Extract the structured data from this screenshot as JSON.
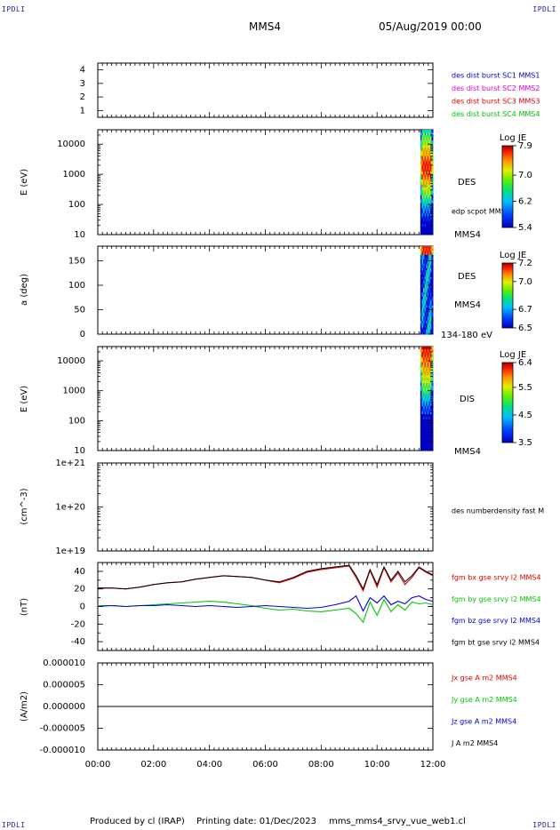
{
  "header": {
    "corner_left": "IPDLI",
    "corner_right": "IPDLI",
    "corner_bottom_left": "IPDLI",
    "corner_bottom_right": "IPDLI",
    "spacecraft": "MMS4",
    "date": "05/Aug/2019 00:00"
  },
  "footer": {
    "produced": "Produced by cl (IRAP)",
    "printing": "Printing date: 01/Dec/2023",
    "file": "mms_mms4_srvy_vue_web1.cl"
  },
  "x_axis": {
    "ticks": [
      "00:00",
      "02:00",
      "04:00",
      "06:00",
      "08:00",
      "10:00",
      "12:00"
    ],
    "range_hours": [
      0,
      12
    ]
  },
  "colors": {
    "mms1": "#0000d0",
    "mms2": "#e000e0",
    "mms3": "#e00000",
    "mms4": "#00c000",
    "bx": "#e00000",
    "by": "#00c800",
    "bz": "#0000e0",
    "bt": "#000000"
  },
  "chart_data": [
    {
      "type": "line",
      "panel": "burst",
      "ylim": [
        0.5,
        4.5
      ],
      "yticks": [
        "4",
        "3",
        "2",
        "1"
      ],
      "legend": [
        "des dist burst SC1 MMS1",
        "des dist burst SC2 MMS2",
        "des dist burst SC3 MMS3",
        "des dist burst SC4 MMS4"
      ],
      "series": []
    },
    {
      "type": "heatmap",
      "panel": "des-energy",
      "ylabel": "E (eV)",
      "yscale": "log",
      "ylim": [
        10,
        30000
      ],
      "yticks": [
        "10000",
        "1000",
        "100",
        "10"
      ],
      "label_right": "DES",
      "overlay_label": "edp scpot MMS4",
      "spacecraft_label": "MMS4",
      "data_time_range_hours": [
        11.55,
        12.0
      ],
      "colorbar": {
        "title": "Log JE",
        "range": [
          5.4,
          7.9
        ],
        "ticks": [
          "7.9",
          "7.0",
          "6.2",
          "5.4"
        ]
      }
    },
    {
      "type": "heatmap",
      "panel": "des-pitch",
      "ylabel": "a (deg)",
      "ylim": [
        0,
        180
      ],
      "yticks": [
        "150",
        "100",
        "50",
        "0"
      ],
      "label_right": "DES",
      "spacecraft_label": "MMS4",
      "energy_label": "134-180 eV",
      "data_time_range_hours": [
        11.55,
        12.0
      ],
      "colorbar": {
        "title": "Log JE",
        "range": [
          6.5,
          7.2
        ],
        "ticks": [
          "7.2",
          "7.0",
          "6.7",
          "6.5"
        ]
      }
    },
    {
      "type": "heatmap",
      "panel": "dis-energy",
      "ylabel": "E (eV)",
      "yscale": "log",
      "ylim": [
        10,
        30000
      ],
      "yticks": [
        "10000",
        "1000",
        "100",
        "10"
      ],
      "label_right": "DIS",
      "spacecraft_label": "MMS4",
      "data_time_range_hours": [
        11.55,
        12.0
      ],
      "colorbar": {
        "title": "Log JE",
        "range": [
          3.5,
          6.4
        ],
        "ticks": [
          "6.4",
          "5.5",
          "4.5",
          "3.5"
        ]
      }
    },
    {
      "type": "line",
      "panel": "density",
      "ylabel": "(cm^-3)",
      "yscale": "log",
      "ylim": [
        1e+19,
        1e+21
      ],
      "yticks": [
        "1e+21",
        "1e+20",
        "1e+19"
      ],
      "legend": [
        "des numberdensity fast M"
      ],
      "series": []
    },
    {
      "type": "line",
      "panel": "magnetic-field",
      "ylabel": "(nT)",
      "ylim": [
        -50,
        50
      ],
      "yticks": [
        "40",
        "20",
        "0",
        "-20",
        "-40"
      ],
      "legend": [
        "fgm bx gse srvy l2 MMS4",
        "fgm by gse srvy l2 MMS4",
        "fgm bz gse srvy l2 MMS4",
        "fgm bt gse srvy l2 MMS4"
      ],
      "x_hours": [
        0,
        0.5,
        1,
        1.5,
        2,
        2.5,
        3,
        3.5,
        4,
        4.5,
        5,
        5.5,
        6,
        6.5,
        7,
        7.5,
        8,
        8.5,
        9,
        9.25,
        9.5,
        9.75,
        10,
        10.25,
        10.5,
        10.75,
        11,
        11.25,
        11.5,
        11.75,
        12
      ],
      "series": [
        {
          "name": "bt",
          "values": [
            21,
            21,
            20,
            22,
            25,
            27,
            28,
            31,
            33,
            35,
            34,
            33,
            30,
            28,
            33,
            40,
            43,
            45,
            47,
            35,
            20,
            42,
            25,
            45,
            30,
            40,
            28,
            35,
            45,
            40,
            36
          ]
        },
        {
          "name": "bx",
          "values": [
            21,
            21,
            20,
            22,
            25,
            27,
            28,
            31,
            33,
            35,
            34,
            33,
            30,
            27,
            32,
            39,
            42,
            44,
            46,
            33,
            18,
            41,
            22,
            44,
            28,
            38,
            25,
            33,
            44,
            39,
            35
          ]
        },
        {
          "name": "by",
          "values": [
            1,
            1,
            0,
            1,
            2,
            3,
            4,
            5,
            6,
            5,
            3,
            1,
            -2,
            -4,
            -3,
            -5,
            -6,
            -4,
            -2,
            -8,
            -18,
            5,
            -10,
            8,
            -6,
            2,
            -4,
            5,
            3,
            4,
            2
          ]
        },
        {
          "name": "bz",
          "values": [
            0,
            1,
            0,
            1,
            1,
            2,
            1,
            0,
            1,
            0,
            -1,
            0,
            1,
            0,
            -1,
            -2,
            -1,
            2,
            6,
            12,
            -5,
            10,
            4,
            12,
            2,
            6,
            3,
            10,
            12,
            8,
            6
          ]
        }
      ]
    },
    {
      "type": "line",
      "panel": "current",
      "ylabel": "(A/m2)",
      "ylim": [
        -1e-05,
        1e-05
      ],
      "yticks": [
        "0.000010",
        "0.000005",
        "0.000000",
        "-0.000005",
        "-0.000010"
      ],
      "legend": [
        "Jx gse A m2 MMS4",
        "Jy gse A m2 MMS4",
        "Jz gse A m2 MMS4",
        "J A m2 MMS4"
      ],
      "x_hours": [
        0,
        12
      ],
      "series": [
        {
          "name": "J",
          "values": [
            0,
            0
          ]
        }
      ]
    }
  ]
}
